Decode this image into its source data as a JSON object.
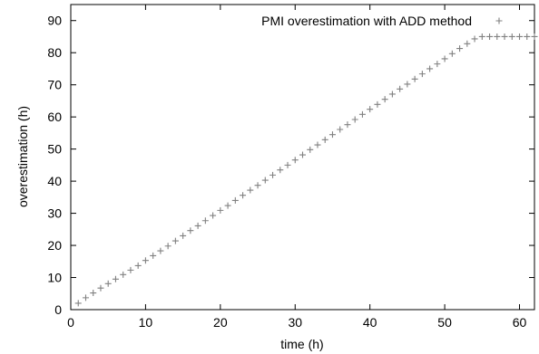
{
  "chart_data": {
    "type": "scatter",
    "title": "",
    "xlabel": "time (h)",
    "ylabel": "overestimation (h)",
    "xlim": [
      0,
      62
    ],
    "ylim": [
      0,
      95
    ],
    "x_ticks": [
      0,
      10,
      20,
      30,
      40,
      50,
      60
    ],
    "y_ticks": [
      0,
      10,
      20,
      30,
      40,
      50,
      60,
      70,
      80,
      90
    ],
    "grid": false,
    "legend_position": "top-right",
    "marker": "plus",
    "marker_color": "#808080",
    "series": [
      {
        "name": "PMI overestimation with ADD method",
        "x": [
          1,
          2,
          3,
          4,
          5,
          6,
          7,
          8,
          9,
          10,
          11,
          12,
          13,
          14,
          15,
          16,
          17,
          18,
          19,
          20,
          21,
          22,
          23,
          24,
          25,
          26,
          27,
          28,
          29,
          30,
          31,
          32,
          33,
          34,
          35,
          36,
          37,
          38,
          39,
          40,
          41,
          42,
          43,
          44,
          45,
          46,
          47,
          48,
          49,
          50,
          51,
          52,
          53,
          54,
          55,
          56,
          57,
          58,
          59,
          60,
          61,
          62
        ],
        "y": [
          2,
          3.7,
          5.2,
          6.7,
          8.1,
          9.5,
          10.9,
          12.3,
          13.7,
          15.3,
          16.8,
          18.3,
          19.8,
          21.4,
          23,
          24.6,
          26.1,
          27.7,
          29.3,
          30.9,
          32.4,
          34,
          35.6,
          37.2,
          38.7,
          40.3,
          41.9,
          43.5,
          45,
          46.6,
          48.2,
          49.8,
          51.3,
          52.9,
          54.5,
          56.1,
          57.6,
          59.2,
          60.8,
          62.4,
          63.9,
          65.5,
          67.1,
          68.7,
          70.2,
          71.8,
          73.4,
          75,
          76.5,
          78.1,
          79.7,
          81.3,
          82.8,
          84.3,
          85,
          85,
          85,
          85,
          85,
          85,
          85,
          85
        ]
      }
    ]
  }
}
